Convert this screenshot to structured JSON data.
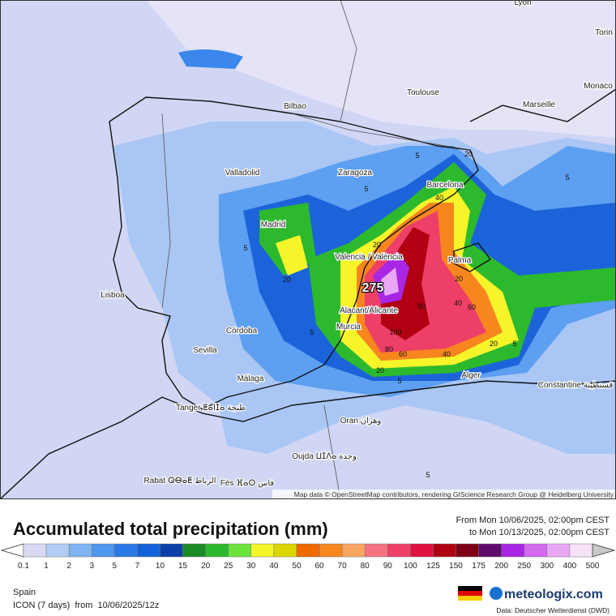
{
  "header": {
    "title": "Accumulated total precipitation (mm)",
    "period_from": "From Mon 10/06/2025, 02:00pm CEST",
    "period_to": "to Mon 10/13/2025, 02:00pm CEST"
  },
  "legend": {
    "labels": [
      "0.1",
      "1",
      "2",
      "3",
      "5",
      "7",
      "10",
      "15",
      "20",
      "25",
      "30",
      "40",
      "50",
      "60",
      "70",
      "80",
      "90",
      "100",
      "125",
      "150",
      "175",
      "200",
      "250",
      "300",
      "400",
      "500"
    ],
    "colors": [
      "#d9d9f3",
      "#b2cdf5",
      "#7fb3f2",
      "#4f96ee",
      "#2b79e6",
      "#1462d8",
      "#0a3fa8",
      "#1a8a22",
      "#2db92d",
      "#6ee23c",
      "#f6f52a",
      "#ddd500",
      "#ef6a00",
      "#f7861f",
      "#f9a661",
      "#f67282",
      "#ee3f68",
      "#e01040",
      "#b00012",
      "#7e0016",
      "#5e0a6c",
      "#a826e4",
      "#d26af0",
      "#e9a8f6",
      "#f6e2f8"
    ],
    "arrow_colors": [
      "#ffffff",
      "#c8c8c8"
    ]
  },
  "map": {
    "cities": [
      "Lyon",
      "Torin",
      "Monaco",
      "Toulouse",
      "Marseille",
      "Bilbao",
      "Zaragoza",
      "Valladolid",
      "Barcelona",
      "Madrid",
      "Valencia / València",
      "Palma",
      "Lisboa",
      "Alacant/Alicante",
      "Murcia",
      "Córdoba",
      "Sevilla",
      "Alger",
      "Constantine قسنطينة",
      "Málaga",
      "Tanger ⵟⴰⵏⵊⴰ طنجة",
      "Oran وهران",
      "Oujda ⵡⵊⴷⴰ وجدة",
      "Rabat ⵕⴱⴰⵟ الرباط",
      "Fès ⴼⴰⵙ فاس"
    ],
    "contour_labels": [
      "5",
      "5",
      "5",
      "5",
      "20",
      "20",
      "40",
      "20",
      "40",
      "60",
      "100",
      "80",
      "60",
      "40",
      "20",
      "20",
      "275",
      "50",
      "5",
      "5",
      "5",
      "20",
      "5"
    ],
    "attribution": "Map data © OpenStreetMap contributors, rendering GIScience Research Group @ Heidelberg University"
  },
  "footer": {
    "region": "Spain",
    "model": "ICON (7 days)  from  10/06/2025/12z",
    "brand": "meteologix.com",
    "source": "Data: Deutscher Wetterdienst (DWD)"
  }
}
